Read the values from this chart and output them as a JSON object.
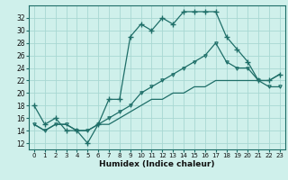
{
  "title": "",
  "xlabel": "Humidex (Indice chaleur)",
  "ylabel": "",
  "bg_color": "#cff0eb",
  "grid_color": "#a8d8d2",
  "line_color": "#1e6e68",
  "xlim": [
    -0.5,
    23.5
  ],
  "ylim": [
    11,
    34
  ],
  "xticks": [
    0,
    1,
    2,
    3,
    4,
    5,
    6,
    7,
    8,
    9,
    10,
    11,
    12,
    13,
    14,
    15,
    16,
    17,
    18,
    19,
    20,
    21,
    22,
    23
  ],
  "yticks": [
    12,
    14,
    16,
    18,
    20,
    22,
    24,
    26,
    28,
    30,
    32
  ],
  "curve1_x": [
    0,
    1,
    2,
    3,
    4,
    5,
    6,
    7,
    8,
    9,
    10,
    11,
    12,
    13,
    14,
    15,
    16,
    17,
    18,
    19,
    20,
    21,
    22,
    23
  ],
  "curve1_y": [
    18,
    15,
    16,
    14,
    14,
    12,
    15,
    19,
    19,
    29,
    31,
    30,
    32,
    31,
    33,
    33,
    33,
    33,
    29,
    27,
    25,
    22,
    22,
    23
  ],
  "curve2_x": [
    0,
    1,
    2,
    3,
    4,
    5,
    6,
    7,
    8,
    9,
    10,
    11,
    12,
    13,
    14,
    15,
    16,
    17,
    18,
    19,
    20,
    21,
    22,
    23
  ],
  "curve2_y": [
    15,
    14,
    15,
    15,
    14,
    14,
    15,
    15,
    16,
    17,
    18,
    19,
    19,
    20,
    20,
    21,
    21,
    22,
    22,
    22,
    22,
    22,
    22,
    23
  ],
  "curve3_x": [
    0,
    1,
    2,
    3,
    4,
    5,
    6,
    7,
    8,
    9,
    10,
    11,
    12,
    13,
    14,
    15,
    16,
    17,
    18,
    19,
    20,
    21,
    22,
    23
  ],
  "curve3_y": [
    15,
    14,
    15,
    15,
    14,
    14,
    15,
    16,
    17,
    18,
    20,
    21,
    22,
    23,
    24,
    25,
    26,
    28,
    25,
    24,
    24,
    22,
    21,
    21
  ]
}
